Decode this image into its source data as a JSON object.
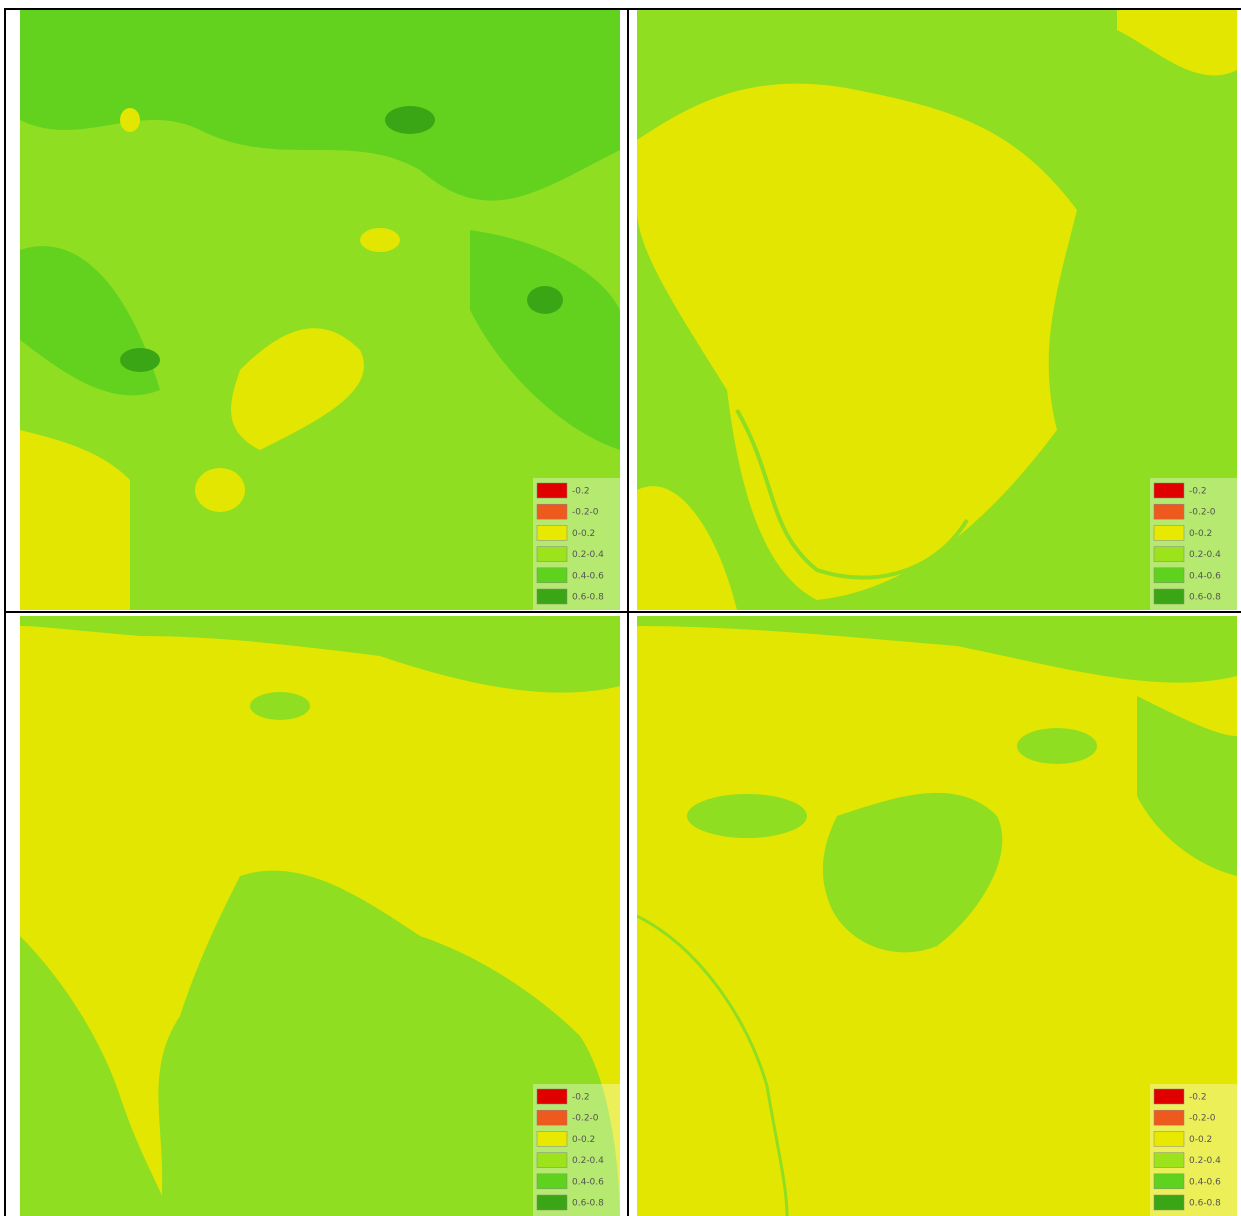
{
  "panels": [
    {
      "legend": [
        {
          "label": "-0.2",
          "color": "#e00000"
        },
        {
          "label": "-0.2-0",
          "color": "#ee5a1e"
        },
        {
          "label": "0-0.2",
          "color": "#e8e800"
        },
        {
          "label": "0.2-0.4",
          "color": "#9de31c"
        },
        {
          "label": "0.4-0.6",
          "color": "#5fd21e"
        },
        {
          "label": "0.6-0.8",
          "color": "#3aa616"
        }
      ]
    },
    {
      "legend": [
        {
          "label": "-0.2",
          "color": "#e00000"
        },
        {
          "label": "-0.2-0",
          "color": "#ee5a1e"
        },
        {
          "label": "0-0.2",
          "color": "#e8e800"
        },
        {
          "label": "0.2-0.4",
          "color": "#9de31c"
        },
        {
          "label": "0.4-0.6",
          "color": "#5fd21e"
        },
        {
          "label": "0.6-0.8",
          "color": "#3aa616"
        }
      ]
    },
    {
      "legend": [
        {
          "label": "-0.2",
          "color": "#e00000"
        },
        {
          "label": "-0.2-0",
          "color": "#ee5a1e"
        },
        {
          "label": "0-0.2",
          "color": "#e8e800"
        },
        {
          "label": "0.2-0.4",
          "color": "#9de31c"
        },
        {
          "label": "0.4-0.6",
          "color": "#5fd21e"
        },
        {
          "label": "0.6-0.8",
          "color": "#3aa616"
        }
      ]
    },
    {
      "legend": [
        {
          "label": "-0.2",
          "color": "#e00000"
        },
        {
          "label": "-0.2-0",
          "color": "#ee5a1e"
        },
        {
          "label": "0-0.2",
          "color": "#e8e800"
        },
        {
          "label": "0.2-0.4",
          "color": "#9de31c"
        },
        {
          "label": "0.4-0.6",
          "color": "#5fd21e"
        },
        {
          "label": "0.6-0.8",
          "color": "#3aa616"
        }
      ]
    }
  ]
}
